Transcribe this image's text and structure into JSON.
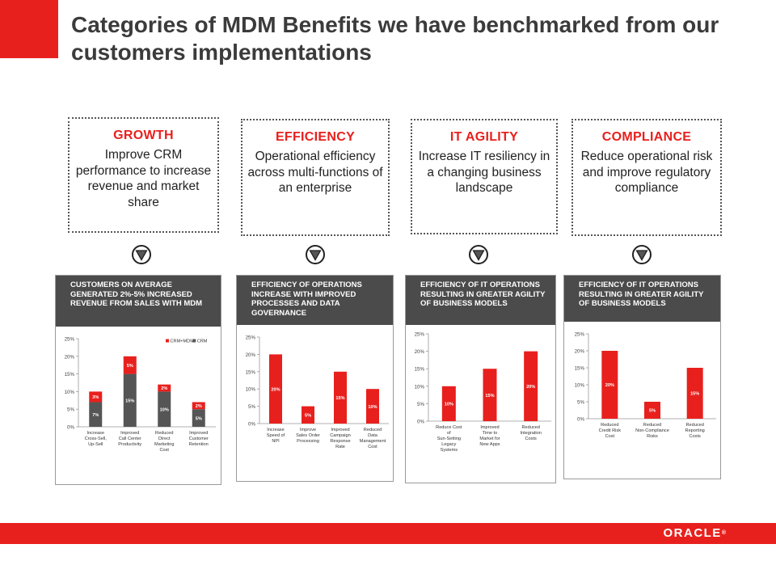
{
  "title": "Categories of MDM Benefits we have benchmarked from our customers implementations",
  "brand_red": "#e8201d",
  "logo_text": "ORACLE",
  "categories": [
    {
      "title": "GROWTH",
      "desc": "Improve CRM performance to increase revenue and market share"
    },
    {
      "title": "EFFICIENCY",
      "desc": "Operational efficiency across multi-functions of an enterprise"
    },
    {
      "title": "IT AGILITY",
      "desc": "Increase IT resiliency in a changing business landscape"
    },
    {
      "title": "COMPLIANCE",
      "desc": "Reduce operational risk and improve regulatory compliance"
    }
  ],
  "panels": [
    {
      "header": "CUSTOMERS ON AVERAGE GENERATED 2%-5% INCREASED REVENUE FROM SALES WITH MDM"
    },
    {
      "header": "EFFICIENCY OF OPERATIONS INCREASE WITH IMPROVED PROCESSES AND DATA GOVERNANCE"
    },
    {
      "header": "EFFICIENCY OF IT OPERATIONS RESULTING IN GREATER AGILITY OF BUSINESS MODELS"
    },
    {
      "header": "EFFICIENCY OF IT OPERATIONS RESULTING IN GREATER AGILITY OF BUSINESS MODELS"
    }
  ],
  "chart_data": [
    {
      "type": "bar",
      "stacked": true,
      "categories": [
        "Increase Cross-Sell, Up-Sell",
        "Improved Call Center Productivity",
        "Reduced Direct Marketing Cost",
        "Improved Customer Retention"
      ],
      "series": [
        {
          "name": "CRM",
          "values": [
            7,
            15,
            10,
            5
          ],
          "labels": [
            "7%",
            "15%",
            "10%",
            "5%"
          ],
          "color": "#555555"
        },
        {
          "name": "CRM+MDM",
          "values": [
            3,
            5,
            2,
            2
          ],
          "labels": [
            "3%",
            "5%",
            "2%",
            "2%"
          ],
          "color": "#e8201d"
        }
      ],
      "yticks": [
        "0%",
        "5%",
        "10%",
        "15%",
        "20%",
        "25%"
      ],
      "ylim": [
        0,
        25
      ],
      "legend": "top-right",
      "grid": false
    },
    {
      "type": "bar",
      "categories": [
        "Increase Speed of NPI",
        "Improve Sales Order Processing",
        "Improved Campaign Response Rate",
        "Reduced Data Management Cost"
      ],
      "series": [
        {
          "values": [
            20,
            5,
            15,
            10
          ],
          "labels": [
            "20%",
            "5%",
            "15%",
            "10%"
          ],
          "color": "#e8201d"
        }
      ],
      "yticks": [
        "0%",
        "5%",
        "10%",
        "15%",
        "20%",
        "25%"
      ],
      "ylim": [
        0,
        25
      ],
      "grid": false
    },
    {
      "type": "bar",
      "categories": [
        "Reduce Cost of Sun-Setting Legacy Systems",
        "Improved Time to Market for New Apps",
        "Reduced Integration Costs"
      ],
      "series": [
        {
          "values": [
            10,
            15,
            20
          ],
          "labels": [
            "10%",
            "15%",
            "20%"
          ],
          "color": "#e8201d"
        }
      ],
      "yticks": [
        "0%",
        "5%",
        "10%",
        "15%",
        "20%",
        "25%"
      ],
      "ylim": [
        0,
        25
      ],
      "grid": false
    },
    {
      "type": "bar",
      "categories": [
        "Reduced Credit Risk Cost",
        "Reduced Non-Compliance Risks",
        "Reduced Reporting Costs"
      ],
      "series": [
        {
          "values": [
            20,
            5,
            15
          ],
          "labels": [
            "20%",
            "5%",
            "15%"
          ],
          "color": "#e8201d"
        }
      ],
      "yticks": [
        "0%",
        "5%",
        "10%",
        "15%",
        "20%",
        "25%"
      ],
      "ylim": [
        0,
        25
      ],
      "grid": false
    }
  ]
}
